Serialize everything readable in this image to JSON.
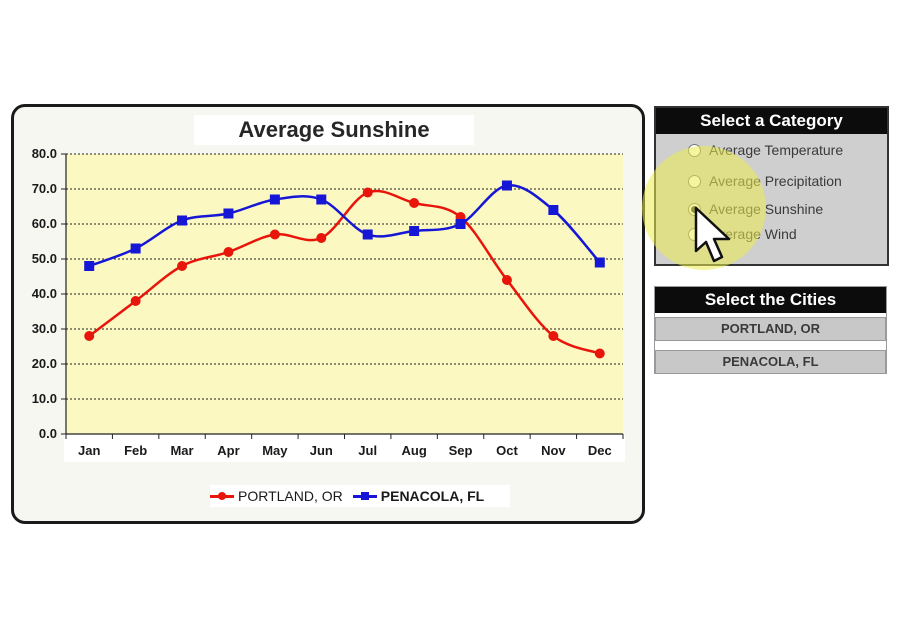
{
  "chart_data": {
    "type": "line",
    "title": "Average Sunshine",
    "categories": [
      "Jan",
      "Feb",
      "Mar",
      "Apr",
      "May",
      "Jun",
      "Jul",
      "Aug",
      "Sep",
      "Oct",
      "Nov",
      "Dec"
    ],
    "ylim": [
      0,
      80
    ],
    "yticks": [
      "0.0",
      "10.0",
      "20.0",
      "30.0",
      "40.0",
      "50.0",
      "60.0",
      "70.0",
      "80.0"
    ],
    "grid": true,
    "smooth": true,
    "legend_position": "bottom",
    "series": [
      {
        "name": "PORTLAND, OR",
        "color": "#e8150b",
        "marker": "circle",
        "values": [
          28,
          38,
          48,
          52,
          57,
          56,
          69,
          66,
          62,
          44,
          28,
          23
        ]
      },
      {
        "name": "PENACOLA, FL",
        "color": "#1616d6",
        "marker": "square",
        "values": [
          48,
          53,
          61,
          63,
          67,
          67,
          57,
          58,
          60,
          71,
          64,
          49
        ]
      }
    ],
    "plot_background": "#fbf8c2"
  },
  "category_panel": {
    "title": "Select a Category",
    "options": [
      "Average Temperature",
      "Average Precipitation",
      "Average Sunshine",
      "Average Wind"
    ],
    "selected": "Average Sunshine"
  },
  "cities_panel": {
    "title": "Select the Cities",
    "cities": [
      "PORTLAND, OR",
      "PENACOLA, FL"
    ]
  }
}
